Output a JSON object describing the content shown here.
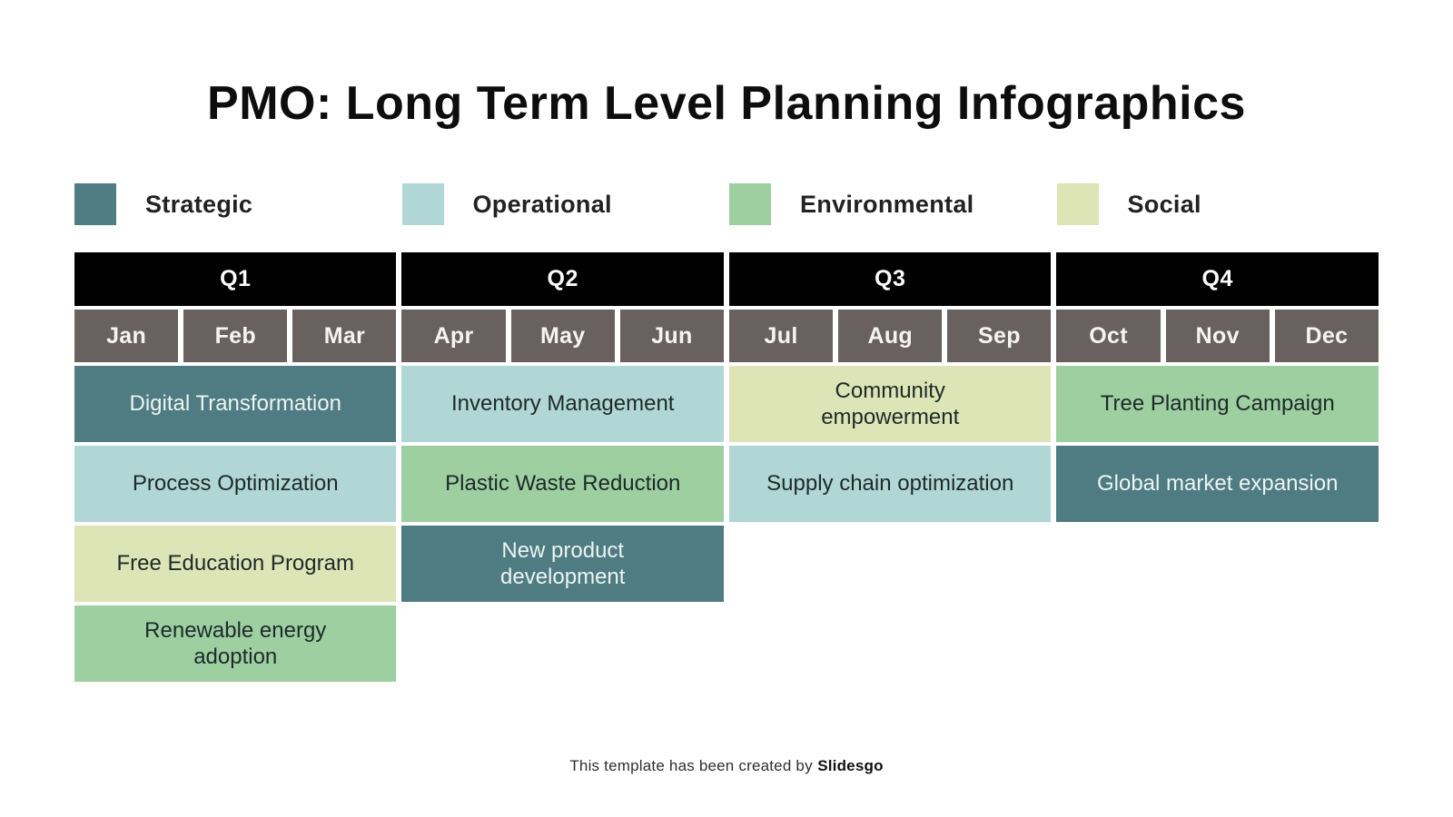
{
  "title": "PMO: Long Term Level Planning Infographics",
  "legend": [
    {
      "label": "Strategic",
      "color": "#4e7c82"
    },
    {
      "label": "Operational",
      "color": "#b0d7d5"
    },
    {
      "label": "Environmental",
      "color": "#9ecfa1"
    },
    {
      "label": "Social",
      "color": "#dde4b6"
    }
  ],
  "colors": {
    "quarter_header_bg": "#000000",
    "month_header_bg": "#69615f",
    "strategic": "#4e7c82",
    "operational": "#b0d7d5",
    "environmental": "#9ecfa1",
    "social": "#dde4b6"
  },
  "quarters": [
    "Q1",
    "Q2",
    "Q3",
    "Q4"
  ],
  "months": [
    "Jan",
    "Feb",
    "Mar",
    "Apr",
    "May",
    "Jun",
    "Jul",
    "Aug",
    "Sep",
    "Oct",
    "Nov",
    "Dec"
  ],
  "tasks": [
    {
      "label": "Digital Transformation",
      "category": "Strategic",
      "quarter": "Q1",
      "row": 1,
      "color": "#4e7c82"
    },
    {
      "label": "Inventory Management",
      "category": "Operational",
      "quarter": "Q2",
      "row": 1,
      "color": "#b0d7d5"
    },
    {
      "label": "Community\nempowerment",
      "category": "Social",
      "quarter": "Q3",
      "row": 1,
      "color": "#dde4b6"
    },
    {
      "label": "Tree Planting Campaign",
      "category": "Environmental",
      "quarter": "Q4",
      "row": 1,
      "color": "#9ecfa1"
    },
    {
      "label": "Process Optimization",
      "category": "Operational",
      "quarter": "Q1",
      "row": 2,
      "color": "#b0d7d5"
    },
    {
      "label": "Plastic Waste Reduction",
      "category": "Environmental",
      "quarter": "Q2",
      "row": 2,
      "color": "#9ecfa1"
    },
    {
      "label": "Supply chain optimization",
      "category": "Operational",
      "quarter": "Q3",
      "row": 2,
      "color": "#b0d7d5"
    },
    {
      "label": "Global market expansion",
      "category": "Strategic",
      "quarter": "Q4",
      "row": 2,
      "color": "#4e7c82"
    },
    {
      "label": "Free Education Program",
      "category": "Social",
      "quarter": "Q1",
      "row": 3,
      "color": "#dde4b6"
    },
    {
      "label": "New product\ndevelopment",
      "category": "Strategic",
      "quarter": "Q2",
      "row": 3,
      "color": "#4e7c82"
    },
    {
      "label": "Renewable energy\nadoption",
      "category": "Environmental",
      "quarter": "Q1",
      "row": 4,
      "color": "#9ecfa1"
    }
  ],
  "footer": {
    "prefix": "This template has been created by",
    "brand": "Slidesgo"
  }
}
